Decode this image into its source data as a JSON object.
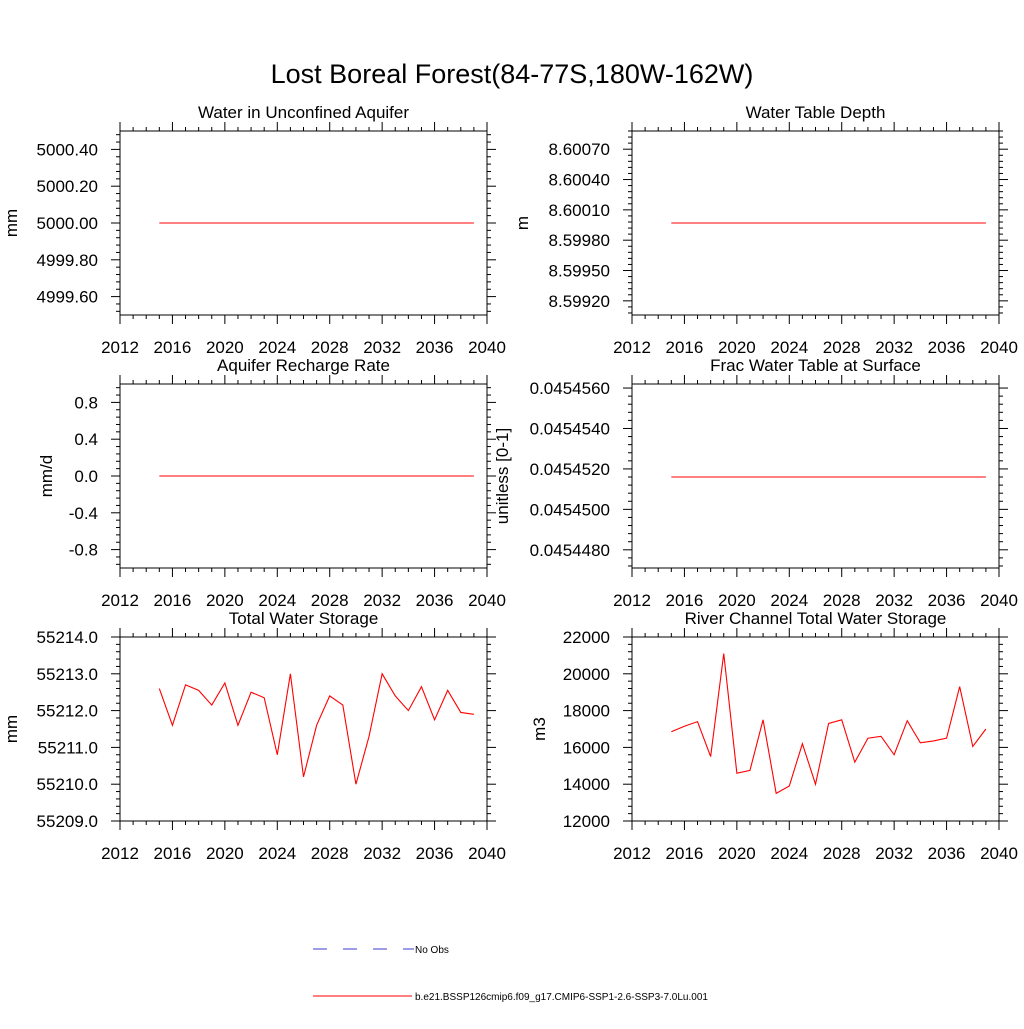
{
  "figure_title": "Lost Boreal Forest(84-77S,180W-162W)",
  "colors": {
    "model": "#ff0000",
    "obs": "#3b3bcf",
    "axis": "#000000"
  },
  "legend": {
    "obs_label": "No Obs",
    "model_label": "b.e21.BSSP126cmip6.f09_g17.CMIP6-SSP1-2.6-SSP3-7.0Lu.001"
  },
  "chart_data": [
    {
      "type": "line",
      "title": "Water in Unconfined Aquifer",
      "ylabel": "mm",
      "xlim": [
        2012,
        2040
      ],
      "ylim": [
        4999.5,
        5000.5
      ],
      "xticks": [
        2012,
        2016,
        2020,
        2024,
        2028,
        2032,
        2036,
        2040
      ],
      "yticks": [
        4999.6,
        4999.8,
        5000.0,
        5000.2,
        5000.4
      ],
      "ytick_labels": [
        "4999.60",
        "4999.80",
        "5000.00",
        "5000.20",
        "5000.40"
      ],
      "series": [
        {
          "x": [
            2015,
            2039
          ],
          "y": [
            5000.0,
            5000.0
          ]
        }
      ]
    },
    {
      "type": "line",
      "title": "Water Table Depth",
      "ylabel": "m",
      "xlim": [
        2012,
        2040
      ],
      "ylim": [
        8.59906,
        8.60088
      ],
      "xticks": [
        2012,
        2016,
        2020,
        2024,
        2028,
        2032,
        2036,
        2040
      ],
      "yticks": [
        8.5992,
        8.5995,
        8.5998,
        8.6001,
        8.6004,
        8.6007
      ],
      "ytick_labels": [
        "8.59920",
        "8.59950",
        "8.59980",
        "8.60010",
        "8.60040",
        "8.60070"
      ],
      "series": [
        {
          "x": [
            2015,
            2039
          ],
          "y": [
            8.59997,
            8.59997
          ]
        }
      ]
    },
    {
      "type": "line",
      "title": "Aquifer Recharge Rate",
      "ylabel": "mm/d",
      "xlim": [
        2012,
        2040
      ],
      "ylim": [
        -1.0,
        1.0
      ],
      "xticks": [
        2012,
        2016,
        2020,
        2024,
        2028,
        2032,
        2036,
        2040
      ],
      "yticks": [
        -0.8,
        -0.4,
        0.0,
        0.4,
        0.8
      ],
      "ytick_labels": [
        "-0.8",
        "-0.4",
        "0.0",
        "0.4",
        "0.8"
      ],
      "series": [
        {
          "x": [
            2015,
            2039
          ],
          "y": [
            0.0,
            0.0
          ]
        }
      ]
    },
    {
      "type": "line",
      "title": "Frac Water Table at Surface",
      "ylabel": "unitless [0-1]",
      "xlim": [
        2012,
        2040
      ],
      "ylim": [
        0.0454471,
        0.0454562
      ],
      "xticks": [
        2012,
        2016,
        2020,
        2024,
        2028,
        2032,
        2036,
        2040
      ],
      "yticks": [
        0.045448,
        0.04545,
        0.045452,
        0.045454,
        0.045456
      ],
      "ytick_labels": [
        "0.0454480",
        "0.0454500",
        "0.0454520",
        "0.0454540",
        "0.0454560"
      ],
      "series": [
        {
          "x": [
            2015,
            2039
          ],
          "y": [
            0.0454516,
            0.0454516
          ]
        }
      ]
    },
    {
      "type": "line",
      "title": "Total Water Storage",
      "ylabel": "mm",
      "xlim": [
        2012,
        2040
      ],
      "ylim": [
        55209.0,
        55214.0
      ],
      "xticks": [
        2012,
        2016,
        2020,
        2024,
        2028,
        2032,
        2036,
        2040
      ],
      "yticks": [
        55209,
        55210,
        55211,
        55212,
        55213,
        55214
      ],
      "ytick_labels": [
        "55209.0",
        "55210.0",
        "55211.0",
        "55212.0",
        "55213.0",
        "55214.0"
      ],
      "series": [
        {
          "x": [
            2015,
            2016,
            2017,
            2018,
            2019,
            2020,
            2021,
            2022,
            2023,
            2024,
            2025,
            2026,
            2027,
            2028,
            2029,
            2030,
            2031,
            2032,
            2033,
            2034,
            2035,
            2036,
            2037,
            2038,
            2039
          ],
          "y": [
            55212.6,
            55211.6,
            55212.7,
            55212.55,
            55212.15,
            55212.75,
            55211.6,
            55212.5,
            55212.35,
            55210.8,
            55213.0,
            55210.2,
            55211.6,
            55212.4,
            55212.15,
            55210.0,
            55211.3,
            55213.0,
            55212.4,
            55212.0,
            55212.65,
            55211.75,
            55212.55,
            55211.95,
            55211.9
          ]
        }
      ]
    },
    {
      "type": "line",
      "title": "River Channel Total Water Storage",
      "ylabel": "m3",
      "xlim": [
        2012,
        2040
      ],
      "ylim": [
        12000,
        22000
      ],
      "xticks": [
        2012,
        2016,
        2020,
        2024,
        2028,
        2032,
        2036,
        2040
      ],
      "yticks": [
        12000,
        14000,
        16000,
        18000,
        20000,
        22000
      ],
      "ytick_labels": [
        "12000",
        "14000",
        "16000",
        "18000",
        "20000",
        "22000"
      ],
      "series": [
        {
          "x": [
            2015,
            2016,
            2017,
            2018,
            2019,
            2020,
            2021,
            2022,
            2023,
            2024,
            2025,
            2026,
            2027,
            2028,
            2029,
            2030,
            2031,
            2032,
            2033,
            2034,
            2035,
            2036,
            2037,
            2038,
            2039
          ],
          "y": [
            16850,
            17150,
            17400,
            15500,
            21100,
            14600,
            14750,
            17500,
            13500,
            13900,
            16200,
            14000,
            17300,
            17500,
            15200,
            16500,
            16600,
            15600,
            17450,
            16250,
            16350,
            16500,
            19300,
            16050,
            17000
          ]
        }
      ]
    }
  ]
}
